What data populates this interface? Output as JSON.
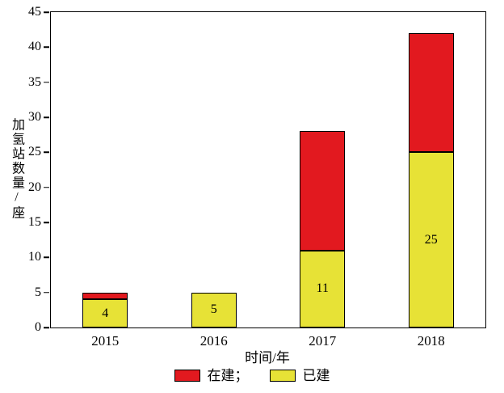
{
  "chart_data": {
    "type": "bar",
    "stacked": true,
    "title": "",
    "xlabel": "时间/年",
    "ylabel": "加氢站数量/座",
    "categories": [
      "2015",
      "2016",
      "2017",
      "2018"
    ],
    "series": [
      {
        "name": "已建",
        "color": "#e7e236",
        "values": [
          4,
          5,
          11,
          25
        ],
        "labels": [
          "4",
          "5",
          "11",
          "25"
        ]
      },
      {
        "name": "在建",
        "color": "#e2191f",
        "values": [
          1,
          0,
          17,
          17
        ],
        "labels": [
          "",
          "",
          "",
          ""
        ]
      }
    ],
    "ylim": [
      0,
      45
    ],
    "ytick_step": 5,
    "grid": false,
    "legend_position": "bottom",
    "legend": [
      {
        "label": "在建；",
        "color": "#e2191f",
        "series": "在建"
      },
      {
        "label": "已建",
        "color": "#e7e236",
        "series": "已建"
      }
    ]
  }
}
